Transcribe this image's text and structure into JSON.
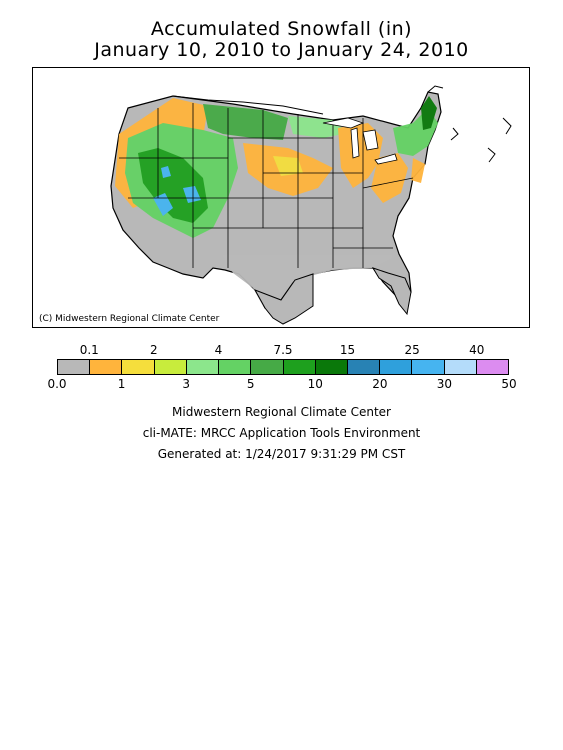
{
  "title_line1": "Accumulated Snowfall (in)",
  "title_line2": "January 10, 2010 to January 24, 2010",
  "map_credit": "(C) Midwestern Regional Climate Center",
  "legend": {
    "top_labels": [
      "0.1",
      "2",
      "4",
      "7.5",
      "15",
      "25",
      "40"
    ],
    "bottom_labels": [
      "0.0",
      "1",
      "3",
      "5",
      "10",
      "20",
      "30",
      "50"
    ],
    "colors": [
      "#b8b8b8",
      "#ffb43c",
      "#f5de3c",
      "#c8ec3c",
      "#8ce68c",
      "#64d264",
      "#46aa46",
      "#1ea01e",
      "#0a780a",
      "#2882b4",
      "#2fa0dc",
      "#46b4f0",
      "#b4dcfa",
      "#dc8cf0"
    ]
  },
  "footer": {
    "line1": "Midwestern Regional Climate Center",
    "line2": "cli-MATE: MRCC Application Tools Environment",
    "line3": "Generated at: 1/24/2017 9:31:29 PM CST"
  }
}
